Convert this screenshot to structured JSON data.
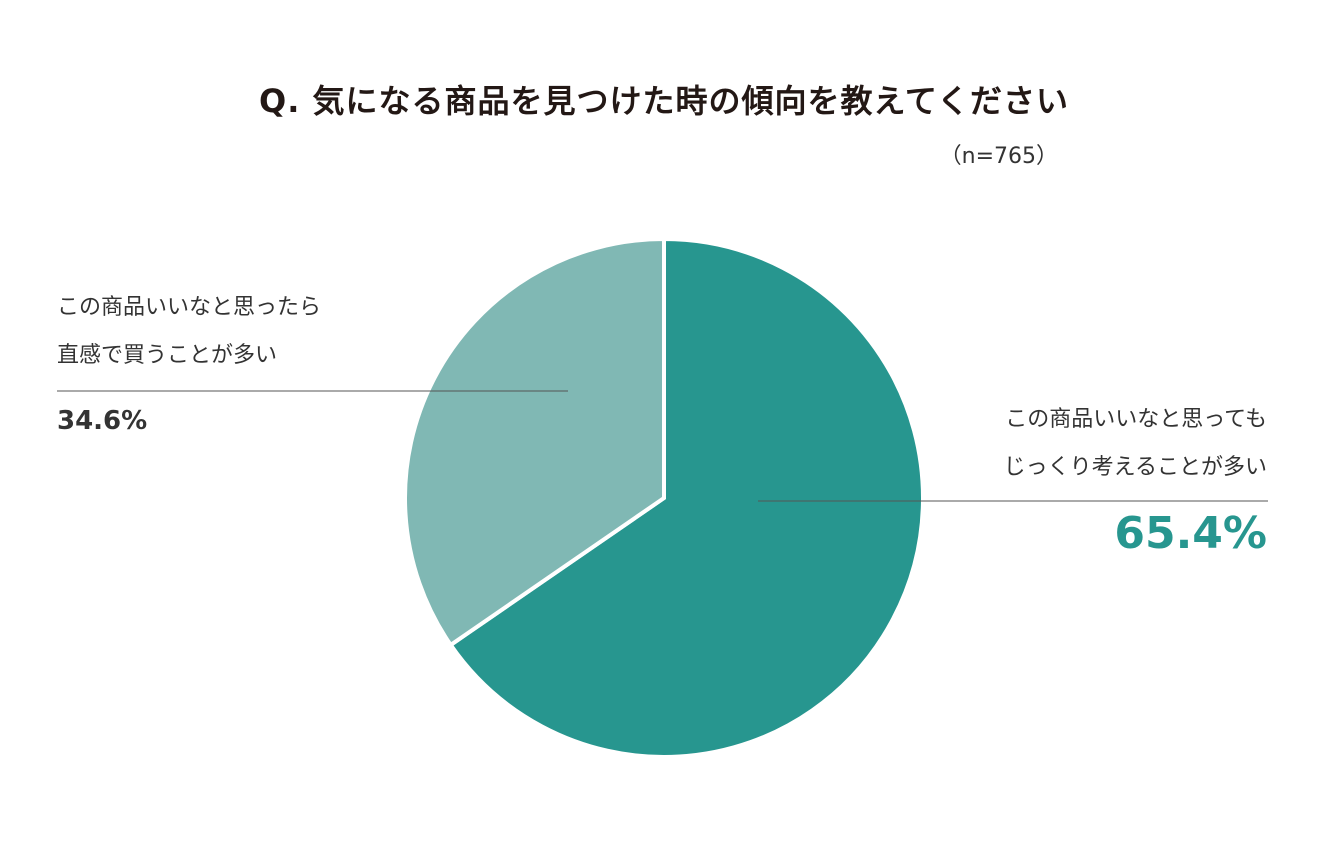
{
  "chart_data": {
    "type": "pie",
    "title": "Q. 気になる商品を見つけた時の傾向を教えてください",
    "sample_size_label": "（n=765）",
    "slices": [
      {
        "label_line1": "この商品いいなと思っても",
        "label_line2": "じっくり考えることが多い",
        "value": 65.4,
        "value_label": "65.4%",
        "color": "#27968f"
      },
      {
        "label_line1": "この商品いいなと思ったら",
        "label_line2": "直感で買うことが多い",
        "value": 34.6,
        "value_label": "34.6%",
        "color": "#80b8b4"
      }
    ],
    "legend": "none",
    "grid": false
  }
}
